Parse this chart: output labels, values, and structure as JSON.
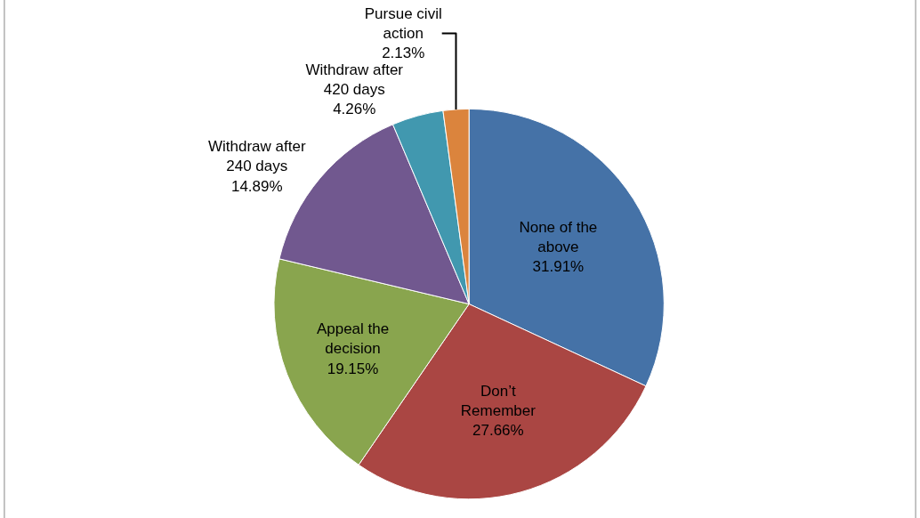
{
  "chart_data": {
    "type": "pie",
    "categories": [
      "None of the above",
      "Don’t Remember",
      "Appeal the decision",
      "Withdraw after 240 days",
      "Withdraw after 420 days",
      "Pursue civil action"
    ],
    "values": [
      31.91,
      27.66,
      19.15,
      14.89,
      4.26,
      2.13
    ],
    "value_labels": [
      "31.91%",
      "27.66%",
      "19.15%",
      "14.89%",
      "4.26%",
      "2.13%"
    ],
    "colors": [
      "#4572a7",
      "#aa4643",
      "#89a54e",
      "#71588f",
      "#4198af",
      "#db843d"
    ],
    "legend": false
  }
}
